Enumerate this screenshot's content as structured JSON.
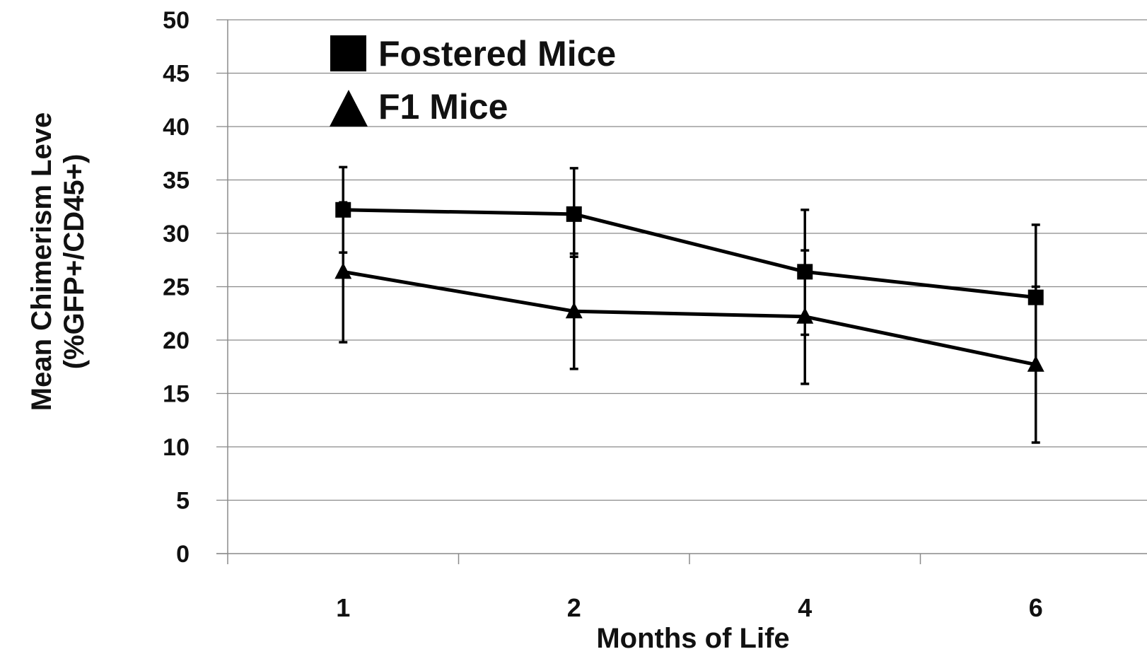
{
  "chart_data": {
    "type": "line",
    "title": "",
    "xlabel": "Months of Life",
    "ylabel": [
      "Mean Chimerism Leve",
      "(%GFP+/CD45+)"
    ],
    "categories": [
      "1",
      "2",
      "4",
      "6"
    ],
    "ylim": [
      0,
      50
    ],
    "yticks": [
      0,
      5,
      10,
      15,
      20,
      25,
      30,
      35,
      40,
      45,
      50
    ],
    "grid": "horizontal",
    "legend_position": "top-left",
    "series": [
      {
        "name": "Fostered Mice",
        "marker": "square",
        "values": [
          32.2,
          31.8,
          26.4,
          24.0
        ],
        "error_upper": [
          36.2,
          36.1,
          32.2,
          30.8
        ],
        "error_lower": [
          28.2,
          27.8,
          20.5,
          17.3
        ]
      },
      {
        "name": "F1 Mice",
        "marker": "triangle",
        "values": [
          26.4,
          22.7,
          22.2,
          17.7
        ],
        "error_upper": [
          32.9,
          28.1,
          28.4,
          25.0
        ],
        "error_lower": [
          19.8,
          17.3,
          15.9,
          10.4
        ]
      }
    ],
    "colors": {
      "line": "#000000",
      "grid": "#8a8a8a",
      "text": "#111111"
    }
  }
}
